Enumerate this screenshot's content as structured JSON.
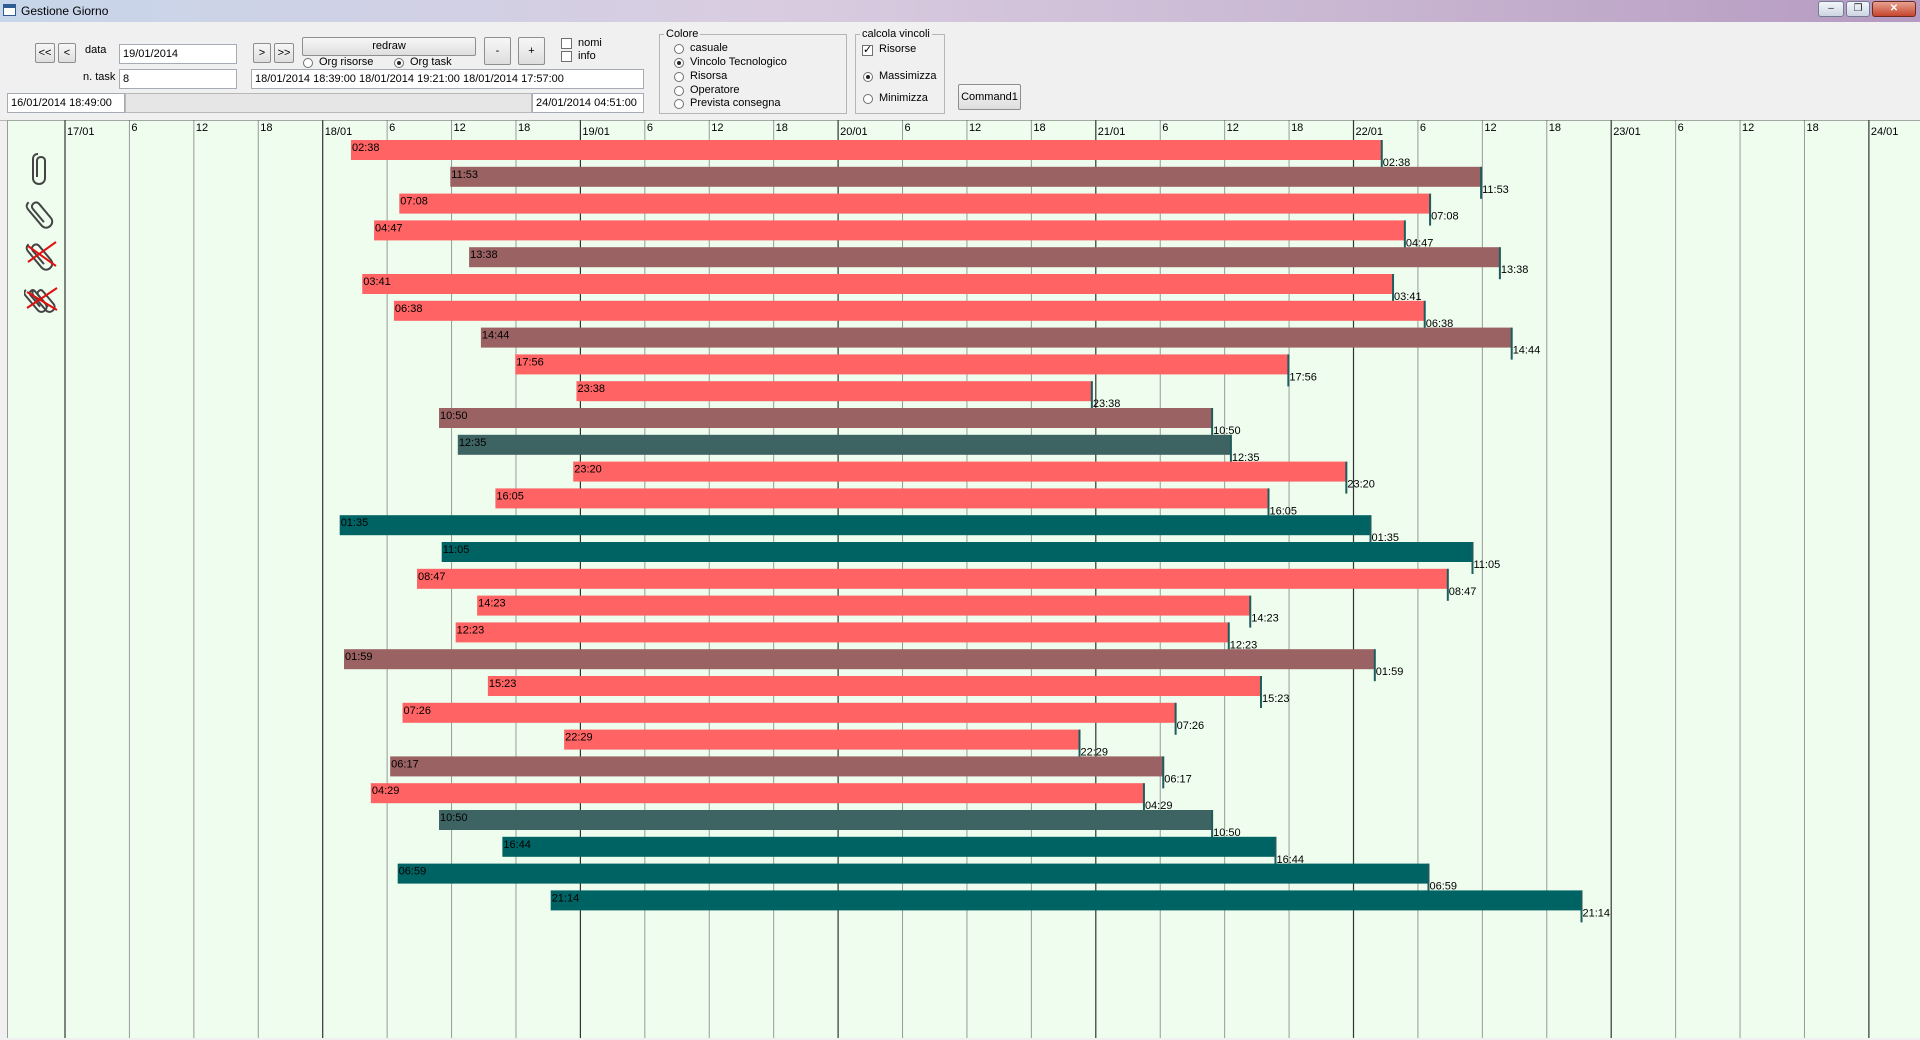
{
  "window": {
    "title": "Gestione Giorno",
    "controls": [
      "–",
      "❐",
      "✕"
    ]
  },
  "nav": {
    "first": "<<",
    "prev": "<",
    "next": ">",
    "last": ">>"
  },
  "data_label": "data",
  "date_value": "19/01/2014",
  "ntask_label": "n. task",
  "ntask_value": "8",
  "redraw_label": "redraw",
  "org_risorse_label": "Org risorse",
  "org_task_label": "Org task",
  "org_selected": "task",
  "minus_label": "-",
  "plus_label": "+",
  "nomi_label": "nomi",
  "info_label": "info",
  "range_text": "18/01/2014 18:39:00 18/01/2014 19:21:00 18/01/2014 17:57:00",
  "start_date": "16/01/2014 18:49:00",
  "end_date": "24/01/2014 04:51:00",
  "colore": {
    "title": "Colore",
    "options": [
      "casuale",
      "Vincolo Tecnologico",
      "Risorsa",
      "Operatore",
      "Prevista consegna"
    ],
    "selected": "Vincolo Tecnologico"
  },
  "vincoli": {
    "title": "calcola vincoli",
    "risorse_label": "Risorse",
    "risorse_checked": true,
    "massimizza_label": "Massimizza",
    "minimizza_label": "Minimizza",
    "selected": "Massimizza"
  },
  "command1_label": "Command1",
  "sidebar_icons": [
    "paperclip-icon",
    "paperclip-tilted-icon",
    "paperclip-crossed-icon",
    "paperclips-crossed-icon"
  ],
  "colors": {
    "salmon": "#ff6363",
    "brown": "#9a6262",
    "slate": "#3d6363",
    "teal": "#006363",
    "chart_bg": "#effdef"
  },
  "timeline": {
    "days": [
      {
        "label": "17/01",
        "ticks": [
          "6",
          "12",
          "18"
        ]
      },
      {
        "label": "18/01",
        "ticks": [
          "6",
          "12",
          "18"
        ]
      },
      {
        "label": "19/01",
        "ticks": [
          "6",
          "12",
          "18"
        ]
      },
      {
        "label": "20/01",
        "ticks": [
          "6",
          "12",
          "18"
        ]
      },
      {
        "label": "21/01",
        "ticks": [
          "6",
          "12",
          "18"
        ]
      },
      {
        "label": "22/01",
        "ticks": [
          "6",
          "12",
          "18"
        ]
      },
      {
        "label": "23/01",
        "ticks": [
          "6",
          "12",
          "18"
        ]
      },
      {
        "label": "24/01",
        "ticks": []
      }
    ]
  },
  "tasks": [
    {
      "start": "18/01 02:38",
      "end": "22/01 02:38",
      "start_label": "02:38",
      "end_label": "02:38",
      "color": "salmon"
    },
    {
      "start": "18/01 11:53",
      "end": "22/01 11:53",
      "start_label": "11:53",
      "end_label": "11:53",
      "color": "brown"
    },
    {
      "start": "18/01 07:08",
      "end": "22/01 07:08",
      "start_label": "07:08",
      "end_label": "07:08",
      "color": "salmon"
    },
    {
      "start": "18/01 04:47",
      "end": "22/01 04:47",
      "start_label": "04:47",
      "end_label": "04:47",
      "color": "salmon"
    },
    {
      "start": "18/01 13:38",
      "end": "22/01 13:38",
      "start_label": "13:38",
      "end_label": "13:38",
      "color": "brown"
    },
    {
      "start": "18/01 03:41",
      "end": "22/01 03:41",
      "start_label": "03:41",
      "end_label": "03:41",
      "color": "salmon"
    },
    {
      "start": "18/01 06:38",
      "end": "22/01 06:38",
      "start_label": "06:38",
      "end_label": "06:38",
      "color": "salmon"
    },
    {
      "start": "18/01 14:44",
      "end": "22/01 14:44",
      "start_label": "14:44",
      "end_label": "14:44",
      "color": "brown"
    },
    {
      "start": "18/01 17:56",
      "end": "21/01 17:56",
      "start_label": "17:56",
      "end_label": "17:56",
      "color": "salmon"
    },
    {
      "start": "18/01 23:38",
      "end": "20/01 23:38",
      "start_label": "23:38",
      "end_label": "23:38",
      "color": "salmon"
    },
    {
      "start": "18/01 10:50",
      "end": "21/01 10:50",
      "start_label": "10:50",
      "end_label": "10:50",
      "color": "brown"
    },
    {
      "start": "18/01 12:35",
      "end": "21/01 12:35",
      "start_label": "12:35",
      "end_label": "12:35",
      "color": "slate"
    },
    {
      "start": "18/01 23:20",
      "end": "21/01 23:20",
      "start_label": "23:20",
      "end_label": "23:20",
      "color": "salmon"
    },
    {
      "start": "18/01 16:05",
      "end": "21/01 16:05",
      "start_label": "16:05",
      "end_label": "16:05",
      "color": "salmon"
    },
    {
      "start": "18/01 01:35",
      "end": "22/01 01:35",
      "start_label": "01:35",
      "end_label": "01:35",
      "color": "teal"
    },
    {
      "start": "18/01 11:05",
      "end": "22/01 11:05",
      "start_label": "11:05",
      "end_label": "11:05",
      "color": "teal"
    },
    {
      "start": "18/01 08:47",
      "end": "22/01 08:47",
      "start_label": "08:47",
      "end_label": "08:47",
      "color": "salmon"
    },
    {
      "start": "18/01 14:23",
      "end": "21/01 14:23",
      "start_label": "14:23",
      "end_label": "14:23",
      "color": "salmon"
    },
    {
      "start": "18/01 12:23",
      "end": "21/01 12:23",
      "start_label": "12:23",
      "end_label": "12:23",
      "color": "salmon"
    },
    {
      "start": "18/01 01:59",
      "end": "22/01 01:59",
      "start_label": "01:59",
      "end_label": "01:59",
      "color": "brown"
    },
    {
      "start": "18/01 15:23",
      "end": "21/01 15:23",
      "start_label": "15:23",
      "end_label": "15:23",
      "color": "salmon"
    },
    {
      "start": "18/01 07:26",
      "end": "21/01 07:26",
      "start_label": "07:26",
      "end_label": "07:26",
      "color": "salmon"
    },
    {
      "start": "18/01 22:29",
      "end": "20/01 22:29",
      "start_label": "22:29",
      "end_label": "22:29",
      "color": "salmon"
    },
    {
      "start": "18/01 06:17",
      "end": "21/01 06:17",
      "start_label": "06:17",
      "end_label": "06:17",
      "color": "brown"
    },
    {
      "start": "18/01 04:29",
      "end": "21/01 04:29",
      "start_label": "04:29",
      "end_label": "04:29",
      "color": "salmon"
    },
    {
      "start": "18/01 10:50",
      "end": "21/01 10:50",
      "start_label": "10:50",
      "end_label": "10:50",
      "color": "slate"
    },
    {
      "start": "18/01 16:44",
      "end": "21/01 16:44",
      "start_label": "16:44",
      "end_label": "16:44",
      "color": "teal"
    },
    {
      "start": "18/01 06:59",
      "end": "22/01 06:59",
      "start_label": "06:59",
      "end_label": "06:59",
      "color": "teal"
    },
    {
      "start": "18/01 21:14",
      "end": "22/01 21:14",
      "start_label": "21:14",
      "end_label": "21:14",
      "color": "teal"
    }
  ]
}
